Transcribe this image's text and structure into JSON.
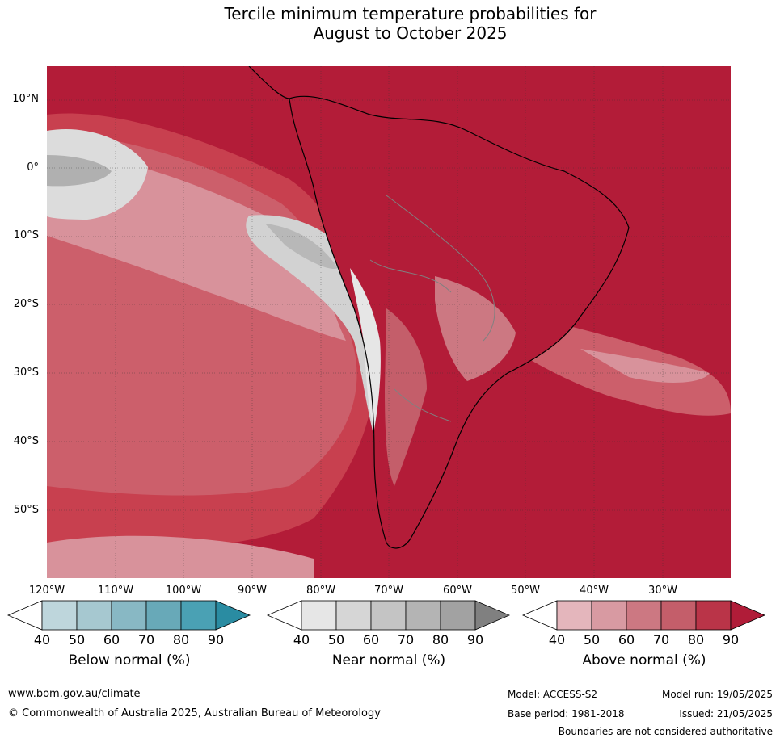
{
  "title_line1": "Tercile minimum temperature probabilities for",
  "title_line2": "August to October 2025",
  "latitude_labels": [
    "10°N",
    "0°",
    "10°S",
    "20°S",
    "30°S",
    "40°S",
    "50°S"
  ],
  "longitude_labels": [
    "120°W",
    "110°W",
    "100°W",
    "90°W",
    "80°W",
    "70°W",
    "60°W",
    "50°W",
    "40°W",
    "30°W"
  ],
  "colorbars": [
    {
      "title": "Below normal (%)",
      "ticks": [
        "40",
        "50",
        "60",
        "70",
        "80",
        "90"
      ],
      "colors": [
        "#ffffff",
        "#bed6dc",
        "#a6c8d0",
        "#88b8c4",
        "#68a9b8",
        "#4aa1b4",
        "#2a8ca2"
      ]
    },
    {
      "title": "Near normal (%)",
      "ticks": [
        "40",
        "50",
        "60",
        "70",
        "80",
        "90"
      ],
      "colors": [
        "#ffffff",
        "#e6e6e6",
        "#d6d6d6",
        "#c4c4c4",
        "#b4b4b4",
        "#a2a2a2",
        "#808080"
      ]
    },
    {
      "title": "Above normal (%)",
      "ticks": [
        "40",
        "50",
        "60",
        "70",
        "80",
        "90"
      ],
      "colors": [
        "#ffffff",
        "#e4b6bc",
        "#d89aa2",
        "#cc7882",
        "#c45e6a",
        "#ba3448",
        "#b01c38"
      ]
    }
  ],
  "footer": {
    "website": "www.bom.gov.au/climate",
    "copyright": "© Commonwealth of Australia 2025, Australian Bureau of Meteorology",
    "model": "Model: ACCESS-S2",
    "model_run": "Model run: 19/05/2025",
    "base_period": "Base period: 1981-2018",
    "issued": "Issued: 21/05/2025",
    "disclaimer": "Boundaries are not considered authoritative"
  }
}
